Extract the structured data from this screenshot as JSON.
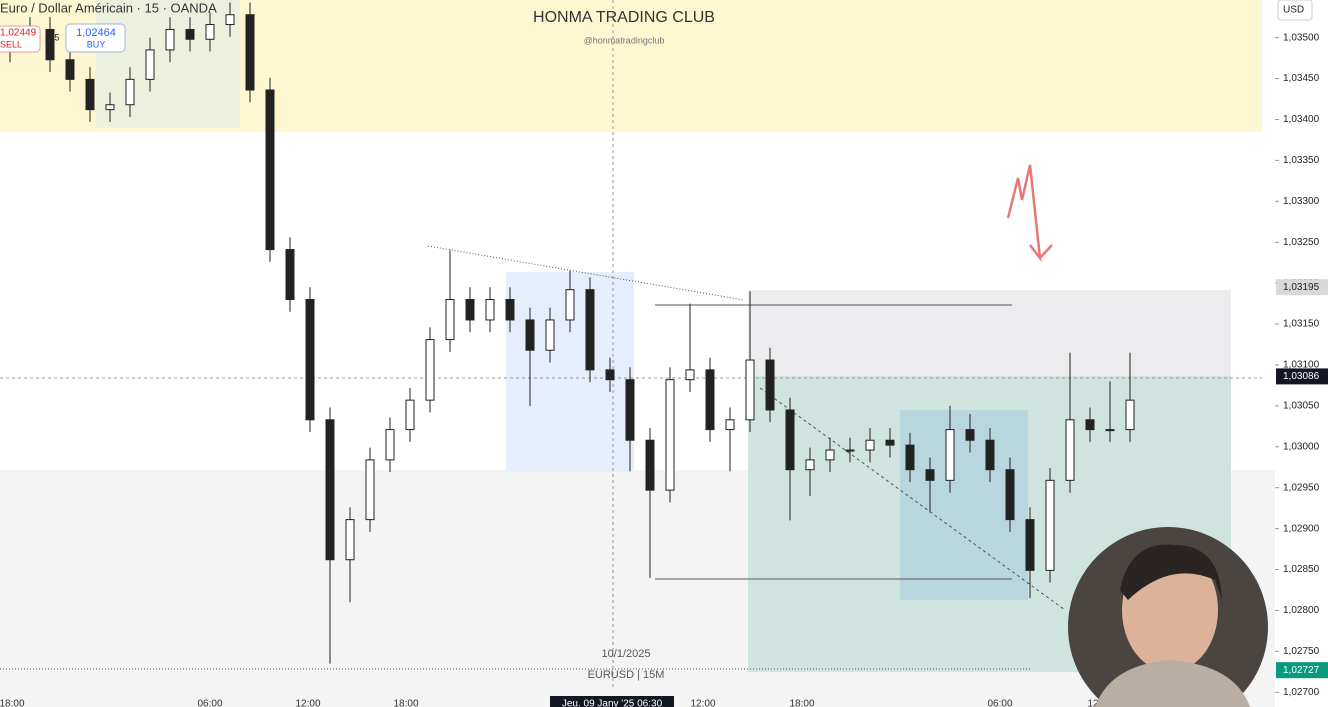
{
  "chart_data": {
    "type": "candlestick",
    "header": {
      "symbol": "Euro / Dollar Américain · 15 · OANDA",
      "sell_price": "1,02449",
      "sell": "SELL",
      "spread": "1,5",
      "buy_price": "1,02464",
      "buy": "BUY"
    },
    "title": "HONMA TRADING CLUB",
    "subtitle": "@honmatradingclub",
    "date_annotation": "10/1/2025",
    "pair_annotation": "EURUSD | 15M",
    "currency": "USD",
    "time_labels": [
      "18:00",
      "06:00",
      "12:00",
      "18:00",
      "Jeu. 09 Janv '25 06:30",
      "12:00",
      "18:00",
      "06:00",
      "12:00"
    ],
    "ylim": [
      1.02682,
      1.03546
    ],
    "yticks": [
      {
        "value": 1.027,
        "label": "1,02700"
      },
      {
        "value": 1.0275,
        "label": "1,02750"
      },
      {
        "value": 1.028,
        "label": "1,02800"
      },
      {
        "value": 1.0285,
        "label": "1,02850"
      },
      {
        "value": 1.029,
        "label": "1,02900"
      },
      {
        "value": 1.0295,
        "label": "1,02950"
      },
      {
        "value": 1.03,
        "label": "1,03000"
      },
      {
        "value": 1.0305,
        "label": "1,03050"
      },
      {
        "value": 1.031,
        "label": "1,03100"
      },
      {
        "value": 1.0315,
        "label": "1,03150"
      },
      {
        "value": 1.032,
        "label": "1,03200"
      },
      {
        "value": 1.0325,
        "label": "1,03250"
      },
      {
        "value": 1.033,
        "label": "1,03300"
      },
      {
        "value": 1.0335,
        "label": "1,03350"
      },
      {
        "value": 1.034,
        "label": "1,03400"
      },
      {
        "value": 1.0345,
        "label": "1,03450"
      },
      {
        "value": 1.035,
        "label": "1,03500"
      }
    ],
    "price_labels": [
      {
        "value": 1.03195,
        "label": "1,03195",
        "color": "#d8d8d8"
      },
      {
        "value": 1.03086,
        "label": "1,03086",
        "color": "#131722"
      },
      {
        "value": 1.02727,
        "label": "1,02727",
        "color": "#089981"
      }
    ],
    "open": [
      1.03485,
      1.03498,
      1.0351,
      1.03473,
      1.03449,
      1.03412,
      1.03418,
      1.03449,
      1.03485,
      1.0351,
      1.03498,
      1.03516,
      1.03528,
      1.03436,
      1.03241,
      1.0318,
      1.03033,
      1.02862,
      1.02911,
      1.02984,
      1.03021,
      1.03057,
      1.03131,
      1.0318,
      1.03155,
      1.0318,
      1.03155,
      1.03118,
      1.03155,
      1.03192,
      1.03094,
      1.03082,
      1.03008,
      1.02947,
      1.03082,
      1.03094,
      1.03021,
      1.03033,
      1.03106,
      1.03045,
      1.02972,
      1.02984,
      1.02996,
      1.02996,
      1.03008,
      1.03002,
      1.02972,
      1.02959,
      1.03021,
      1.03008,
      1.02972,
      1.02911,
      1.02849,
      1.02959,
      1.03033,
      1.03021,
      1.03021
    ],
    "high": [
      1.03513,
      1.03525,
      1.03525,
      1.03488,
      1.03464,
      1.03433,
      1.03464,
      1.035,
      1.03525,
      1.03525,
      1.03531,
      1.03543,
      1.03543,
      1.03451,
      1.03256,
      1.03195,
      1.03048,
      1.02926,
      1.02999,
      1.03036,
      1.03072,
      1.03146,
      1.0324,
      1.03195,
      1.03195,
      1.03195,
      1.0317,
      1.0317,
      1.03215,
      1.03207,
      1.03109,
      1.03097,
      1.03023,
      1.03097,
      1.03175,
      1.03109,
      1.03048,
      1.0319,
      1.03121,
      1.0306,
      1.02999,
      1.03011,
      1.03011,
      1.03023,
      1.03023,
      1.03017,
      1.02987,
      1.0305,
      1.0304,
      1.03023,
      1.02987,
      1.02926,
      1.02974,
      1.03115,
      1.03048,
      1.0308,
      1.03115
    ],
    "low": [
      1.0347,
      1.03483,
      1.03458,
      1.03434,
      1.03397,
      1.03397,
      1.03403,
      1.03434,
      1.0347,
      1.03483,
      1.03483,
      1.03501,
      1.03421,
      1.03226,
      1.03165,
      1.03018,
      1.02735,
      1.0281,
      1.02896,
      1.02969,
      1.03006,
      1.03042,
      1.03116,
      1.0314,
      1.0314,
      1.0314,
      1.0305,
      1.03103,
      1.0314,
      1.03079,
      1.03067,
      1.0297,
      1.0284,
      1.02932,
      1.03067,
      1.03006,
      1.0297,
      1.03018,
      1.0303,
      1.0291,
      1.0294,
      1.02969,
      1.02981,
      1.02981,
      1.02987,
      1.02957,
      1.0292,
      1.02944,
      1.02993,
      1.02957,
      1.02896,
      1.02815,
      1.02834,
      1.02944,
      1.03006,
      1.03006,
      1.03006
    ],
    "close": [
      1.03498,
      1.0351,
      1.03473,
      1.03449,
      1.03412,
      1.03418,
      1.03449,
      1.03485,
      1.0351,
      1.03498,
      1.03516,
      1.03528,
      1.03436,
      1.03241,
      1.0318,
      1.03033,
      1.02862,
      1.02911,
      1.02984,
      1.03021,
      1.03057,
      1.03131,
      1.0318,
      1.03155,
      1.0318,
      1.03155,
      1.03118,
      1.03155,
      1.03192,
      1.03094,
      1.03082,
      1.03008,
      1.02947,
      1.03082,
      1.03094,
      1.03021,
      1.03033,
      1.03106,
      1.03045,
      1.02972,
      1.02984,
      1.02996,
      1.02996,
      1.03008,
      1.03002,
      1.02972,
      1.02959,
      1.03021,
      1.03008,
      1.02972,
      1.02911,
      1.02849,
      1.02959,
      1.03033,
      1.03021,
      1.03021,
      1.03057
    ]
  }
}
